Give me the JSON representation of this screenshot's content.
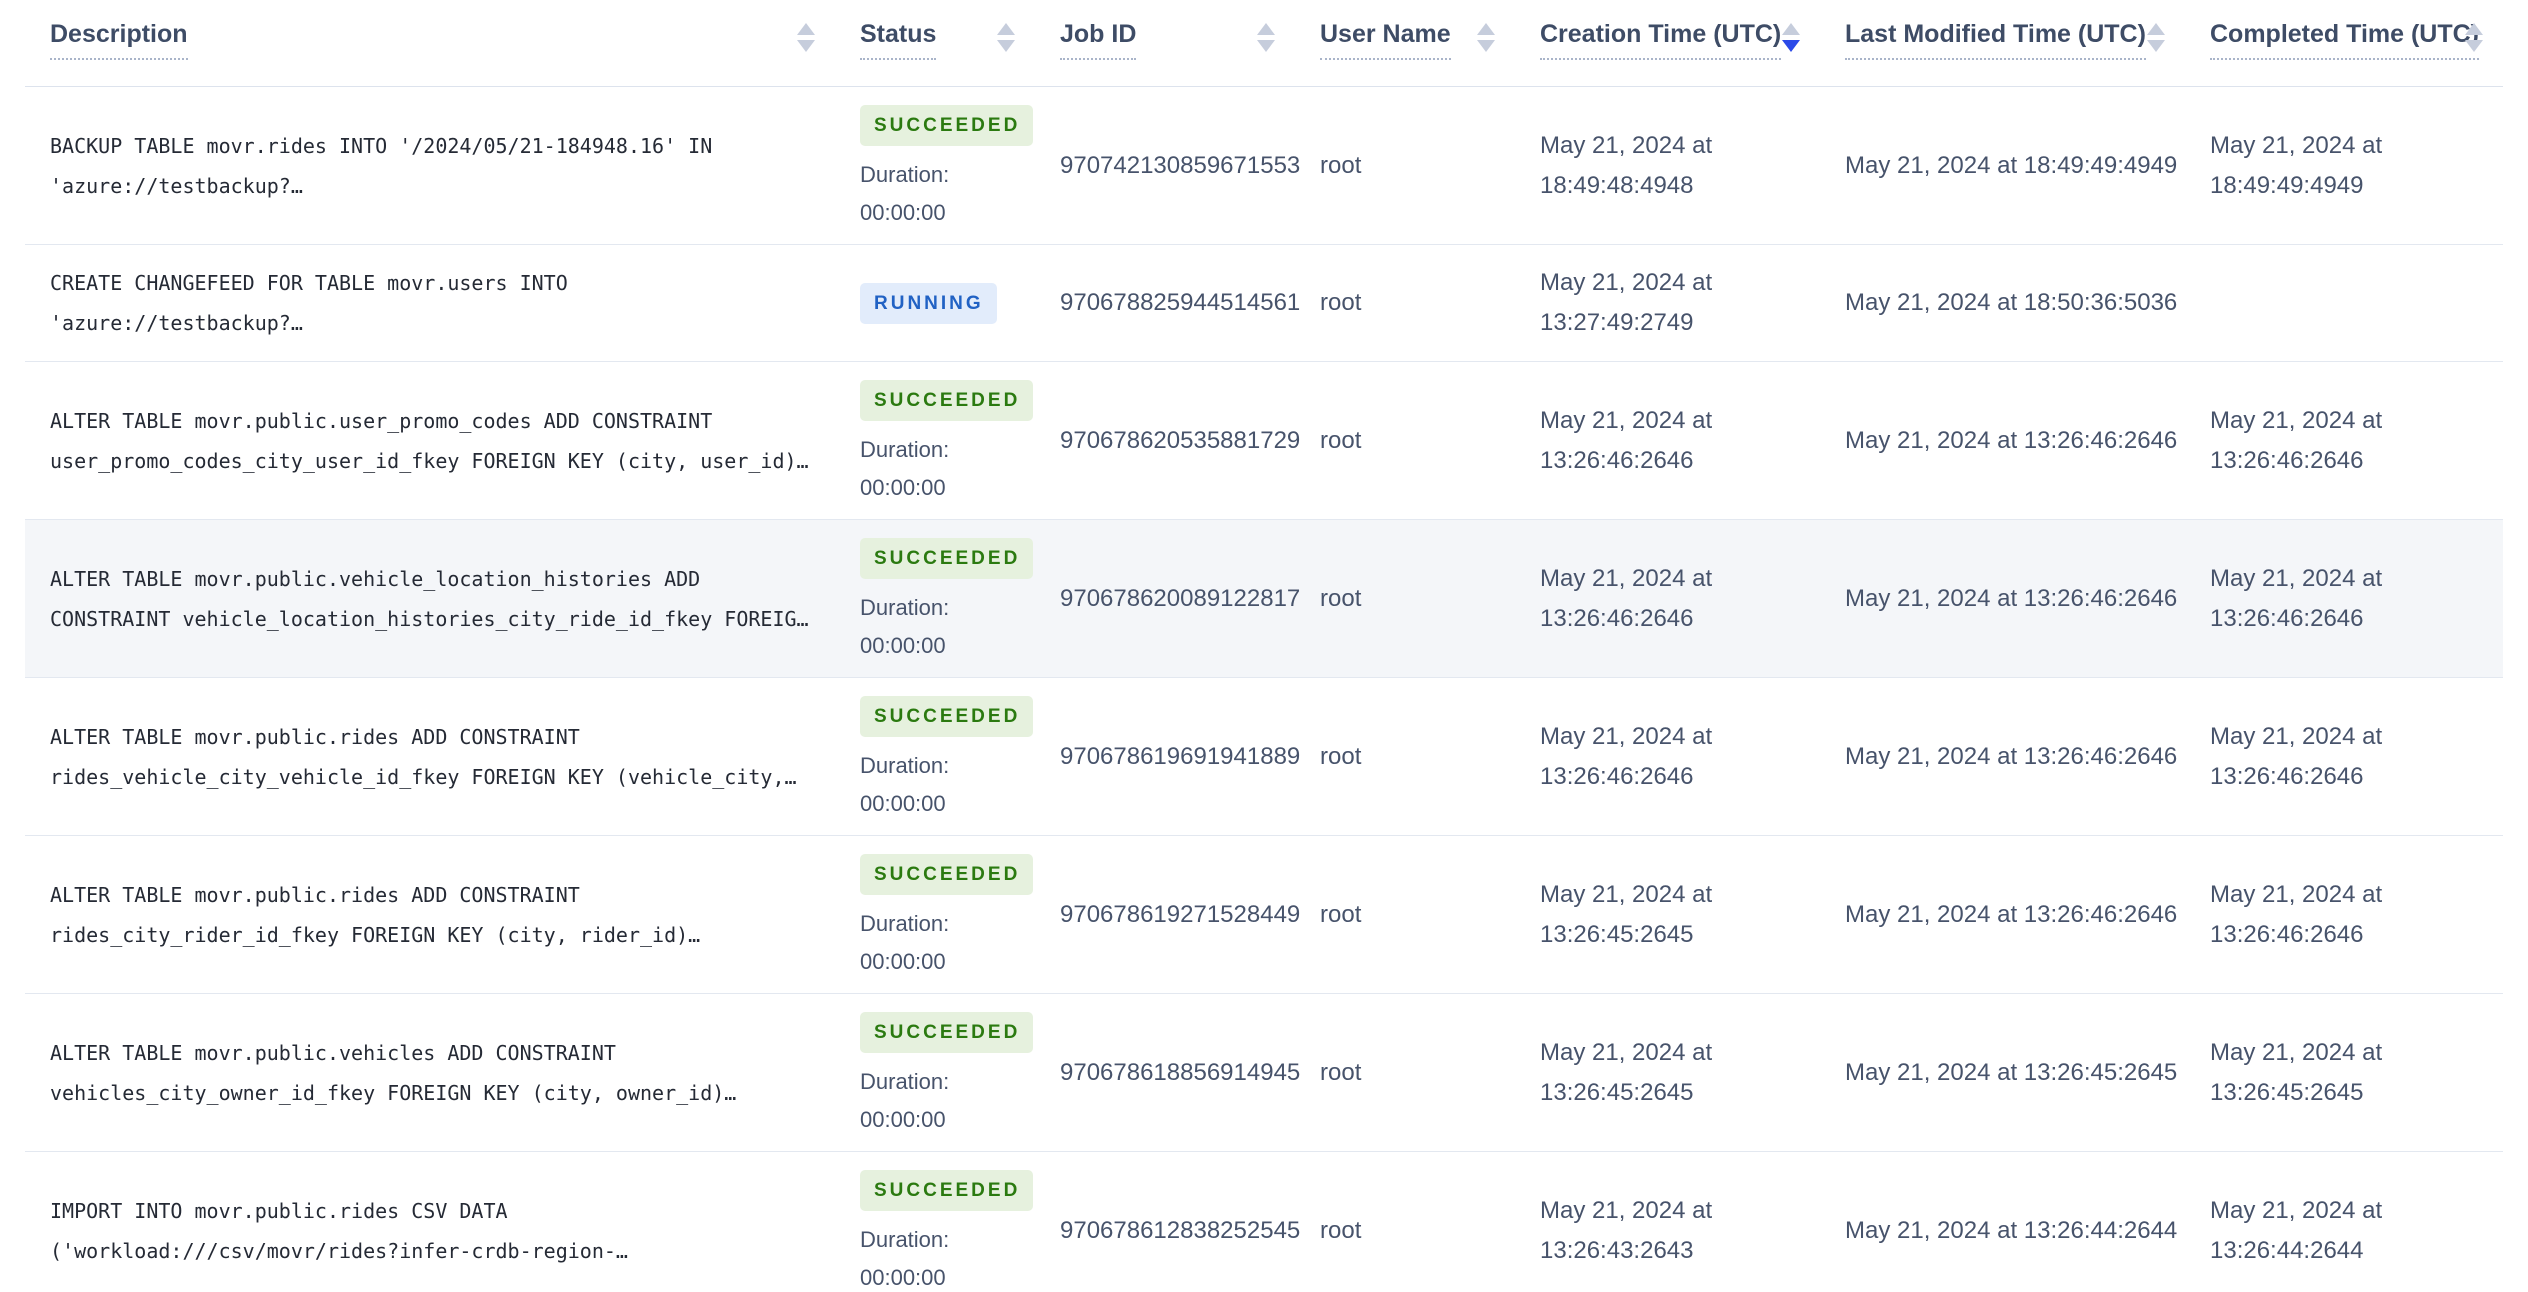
{
  "table": {
    "columns": [
      {
        "label": "Description",
        "sort": "none"
      },
      {
        "label": "Status",
        "sort": "none"
      },
      {
        "label": "Job ID",
        "sort": "none"
      },
      {
        "label": "User Name",
        "sort": "none"
      },
      {
        "label": "Creation Time (UTC)",
        "sort": "desc"
      },
      {
        "label": "Last Modified Time (UTC)",
        "sort": "none"
      },
      {
        "label": "Completed Time (UTC)",
        "sort": "none"
      }
    ],
    "rows": [
      {
        "description": "BACKUP TABLE movr.rides INTO '/2024/05/21-184948.16' IN\n'azure://testbackup?…",
        "status": "SUCCEEDED",
        "duration_label": "Duration:",
        "duration": "00:00:00",
        "job_id": "970742130859671553",
        "user_name": "root",
        "creation_time": "May 21, 2024 at\n18:49:48:4948",
        "last_modified_time": "May 21, 2024 at 18:49:49:4949",
        "completed_time": "May 21, 2024 at\n18:49:49:4949",
        "highlighted": false
      },
      {
        "description": "CREATE CHANGEFEED FOR TABLE movr.users INTO\n'azure://testbackup?…",
        "status": "RUNNING",
        "duration_label": null,
        "duration": null,
        "job_id": "970678825944514561",
        "user_name": "root",
        "creation_time": "May 21, 2024 at\n13:27:49:2749",
        "last_modified_time": "May 21, 2024 at 18:50:36:5036",
        "completed_time": "",
        "highlighted": false
      },
      {
        "description": "ALTER TABLE movr.public.user_promo_codes ADD CONSTRAINT\nuser_promo_codes_city_user_id_fkey FOREIGN KEY (city, user_id)…",
        "status": "SUCCEEDED",
        "duration_label": "Duration:",
        "duration": "00:00:00",
        "job_id": "970678620535881729",
        "user_name": "root",
        "creation_time": "May 21, 2024 at\n13:26:46:2646",
        "last_modified_time": "May 21, 2024 at 13:26:46:2646",
        "completed_time": "May 21, 2024 at\n13:26:46:2646",
        "highlighted": false
      },
      {
        "description": "ALTER TABLE movr.public.vehicle_location_histories ADD\nCONSTRAINT vehicle_location_histories_city_ride_id_fkey FOREIG…",
        "status": "SUCCEEDED",
        "duration_label": "Duration:",
        "duration": "00:00:00",
        "job_id": "970678620089122817",
        "user_name": "root",
        "creation_time": "May 21, 2024 at\n13:26:46:2646",
        "last_modified_time": "May 21, 2024 at 13:26:46:2646",
        "completed_time": "May 21, 2024 at\n13:26:46:2646",
        "highlighted": true
      },
      {
        "description": "ALTER TABLE movr.public.rides ADD CONSTRAINT\nrides_vehicle_city_vehicle_id_fkey FOREIGN KEY (vehicle_city,…",
        "status": "SUCCEEDED",
        "duration_label": "Duration:",
        "duration": "00:00:00",
        "job_id": "970678619691941889",
        "user_name": "root",
        "creation_time": "May 21, 2024 at\n13:26:46:2646",
        "last_modified_time": "May 21, 2024 at 13:26:46:2646",
        "completed_time": "May 21, 2024 at\n13:26:46:2646",
        "highlighted": false
      },
      {
        "description": "ALTER TABLE movr.public.rides ADD CONSTRAINT\nrides_city_rider_id_fkey FOREIGN KEY (city, rider_id)…",
        "status": "SUCCEEDED",
        "duration_label": "Duration:",
        "duration": "00:00:00",
        "job_id": "970678619271528449",
        "user_name": "root",
        "creation_time": "May 21, 2024 at\n13:26:45:2645",
        "last_modified_time": "May 21, 2024 at 13:26:46:2646",
        "completed_time": "May 21, 2024 at\n13:26:46:2646",
        "highlighted": false
      },
      {
        "description": "ALTER TABLE movr.public.vehicles ADD CONSTRAINT\nvehicles_city_owner_id_fkey FOREIGN KEY (city, owner_id)…",
        "status": "SUCCEEDED",
        "duration_label": "Duration:",
        "duration": "00:00:00",
        "job_id": "970678618856914945",
        "user_name": "root",
        "creation_time": "May 21, 2024 at\n13:26:45:2645",
        "last_modified_time": "May 21, 2024 at 13:26:45:2645",
        "completed_time": "May 21, 2024 at\n13:26:45:2645",
        "highlighted": false
      },
      {
        "description": "IMPORT INTO movr.public.rides CSV DATA\n('workload:///csv/movr/rides?infer-crdb-region-…",
        "status": "SUCCEEDED",
        "duration_label": "Duration:",
        "duration": "00:00:00",
        "job_id": "970678612838252545",
        "user_name": "root",
        "creation_time": "May 21, 2024 at\n13:26:43:2643",
        "last_modified_time": "May 21, 2024 at 13:26:44:2644",
        "completed_time": "May 21, 2024 at\n13:26:44:2644",
        "highlighted": false
      }
    ]
  },
  "colors": {
    "succeeded_badge_bg": "#e6f1de",
    "succeeded_badge_text": "#2b7a10",
    "running_badge_bg": "#e2ecfb",
    "running_badge_text": "#2162c4",
    "sort_active_arrow": "#2b4ae8",
    "row_highlight_bg": "#f4f6f9"
  }
}
